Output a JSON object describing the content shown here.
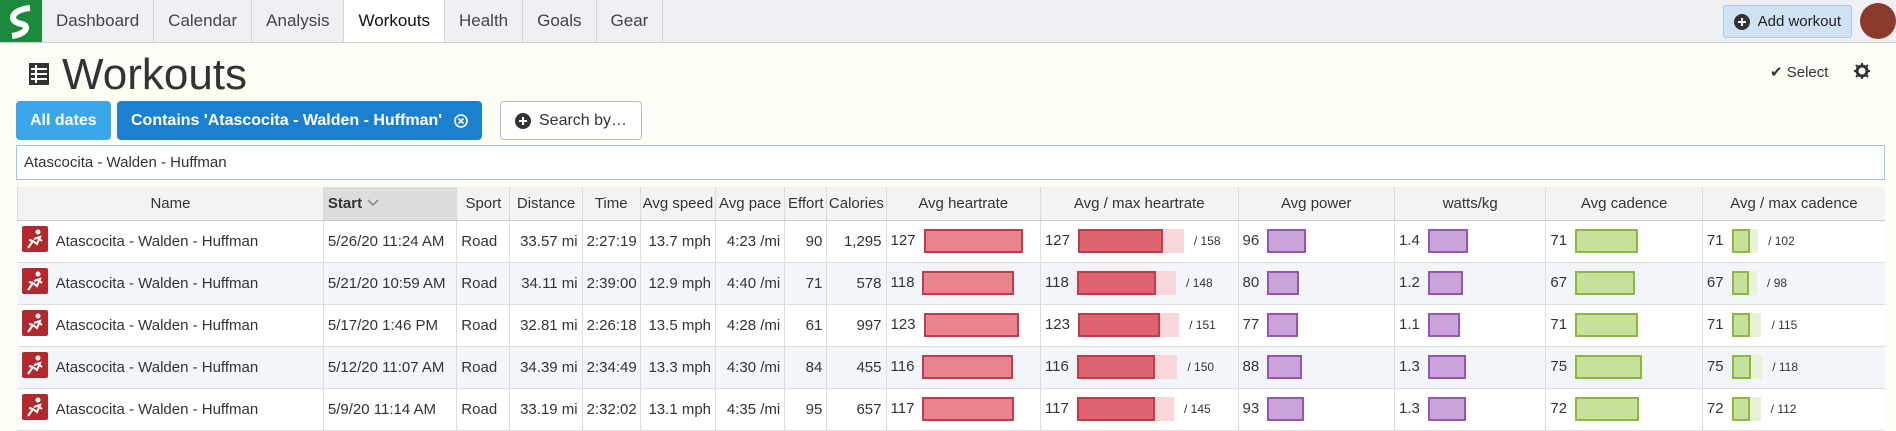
{
  "nav": {
    "items": [
      "Dashboard",
      "Calendar",
      "Analysis",
      "Workouts",
      "Health",
      "Goals",
      "Gear"
    ],
    "add_workout": "Add workout"
  },
  "header": {
    "title": "Workouts",
    "select": "Select"
  },
  "filters": {
    "all_dates": "All dates",
    "contains": "Contains 'Atascocita - Walden - Huffman'",
    "search_by": "Search by…"
  },
  "search_text": "Atascocita - Walden - Huffman",
  "table": {
    "columns": [
      "Name",
      "Start",
      "Sport",
      "Distance",
      "Time",
      "Avg speed",
      "Avg pace",
      "Effort",
      "Calories",
      "Avg heartrate",
      "Avg / max heartrate",
      "Avg power",
      "watts/kg",
      "Avg cadence",
      "Avg / max cadence"
    ],
    "rows": [
      {
        "name": "Atascocita - Walden - Huffman",
        "start": "5/26/20 11:24 AM",
        "sport": "Road",
        "distance": "33.57 mi",
        "time": "2:27:19",
        "avg_speed": "13.7 mph",
        "avg_pace": "4:23 /mi",
        "effort": 90,
        "calories": "1,295",
        "avg_hr": 127,
        "max_hr": {
          "value": 158,
          "label": "/ 158"
        },
        "avg_power": 96,
        "watts_kg": 1.4,
        "avg_cadence": 71,
        "max_cadence": {
          "value": 102,
          "label": "/ 102"
        }
      },
      {
        "name": "Atascocita - Walden - Huffman",
        "start": "5/21/20 10:59 AM",
        "sport": "Road",
        "distance": "34.11 mi",
        "time": "2:39:00",
        "avg_speed": "12.9 mph",
        "avg_pace": "4:40 /mi",
        "effort": 71,
        "calories": "578",
        "avg_hr": 118,
        "max_hr": {
          "value": 148,
          "label": "/ 148"
        },
        "avg_power": 80,
        "watts_kg": 1.2,
        "avg_cadence": 67,
        "max_cadence": {
          "value": 98,
          "label": "/ 98"
        }
      },
      {
        "name": "Atascocita - Walden - Huffman",
        "start": "5/17/20 1:46 PM",
        "sport": "Road",
        "distance": "32.81 mi",
        "time": "2:26:18",
        "avg_speed": "13.5 mph",
        "avg_pace": "4:28 /mi",
        "effort": 61,
        "calories": "997",
        "avg_hr": 123,
        "max_hr": {
          "value": 151,
          "label": "/ 151"
        },
        "avg_power": 77,
        "watts_kg": 1.1,
        "avg_cadence": 71,
        "max_cadence": {
          "value": 115,
          "label": "/ 115"
        }
      },
      {
        "name": "Atascocita - Walden - Huffman",
        "start": "5/12/20 11:07 AM",
        "sport": "Road",
        "distance": "34.39 mi",
        "time": "2:34:49",
        "avg_speed": "13.3 mph",
        "avg_pace": "4:30 /mi",
        "effort": 84,
        "calories": "455",
        "avg_hr": 116,
        "max_hr": {
          "value": 150,
          "label": "/ 150"
        },
        "avg_power": 88,
        "watts_kg": 1.3,
        "avg_cadence": 75,
        "max_cadence": {
          "value": 118,
          "label": "/ 118"
        }
      },
      {
        "name": "Atascocita - Walden - Huffman",
        "start": "5/9/20 11:14 AM",
        "sport": "Road",
        "distance": "33.19 mi",
        "time": "2:32:02",
        "avg_speed": "13.1 mph",
        "avg_pace": "4:35 /mi",
        "effort": 95,
        "calories": "657",
        "avg_hr": 117,
        "max_hr": {
          "value": 145,
          "label": "/ 145"
        },
        "avg_power": 93,
        "watts_kg": 1.3,
        "avg_cadence": 72,
        "max_cadence": {
          "value": 112,
          "label": "/ 112"
        }
      }
    ]
  }
}
